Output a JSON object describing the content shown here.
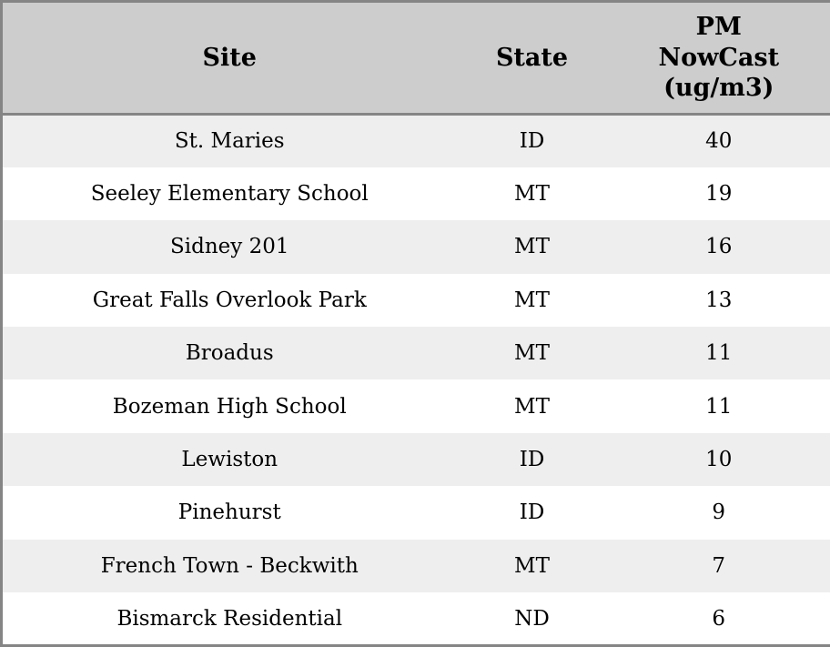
{
  "colors": {
    "header_background": "#cdcdcd",
    "row_stripe": "#eeeeee",
    "row_plain": "#ffffff",
    "table_border": "#858585",
    "text": "#000000"
  },
  "chart_data": {
    "type": "table",
    "title": "",
    "columns": [
      "Site",
      "State",
      "PM NowCast (ug/m3)"
    ],
    "rows": [
      {
        "site": "St. Maries",
        "state": "ID",
        "value": "40"
      },
      {
        "site": "Seeley Elementary School",
        "state": "MT",
        "value": "19"
      },
      {
        "site": "Sidney 201",
        "state": "MT",
        "value": "16"
      },
      {
        "site": "Great Falls Overlook Park",
        "state": "MT",
        "value": "13"
      },
      {
        "site": "Broadus",
        "state": "MT",
        "value": "11"
      },
      {
        "site": "Bozeman High School",
        "state": "MT",
        "value": "11"
      },
      {
        "site": "Lewiston",
        "state": "ID",
        "value": "10"
      },
      {
        "site": "Pinehurst",
        "state": "ID",
        "value": "9"
      },
      {
        "site": "French Town - Beckwith",
        "state": "MT",
        "value": "7"
      },
      {
        "site": "Bismarck Residential",
        "state": "ND",
        "value": "6"
      }
    ]
  }
}
